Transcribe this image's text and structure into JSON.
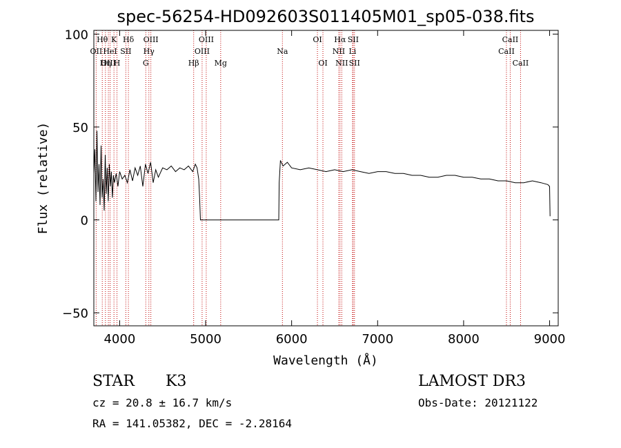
{
  "chart_data": {
    "type": "line",
    "title": "spec-56254-HD092603S011405M01_sp05-038.fits",
    "xlabel": "Wavelength (Å)",
    "ylabel": "Flux (relative)",
    "xlim": [
      3700,
      9100
    ],
    "ylim": [
      -57,
      102
    ],
    "x_ticks": [
      4000,
      5000,
      6000,
      7000,
      8000,
      9000
    ],
    "y_ticks": [
      100,
      50,
      0,
      -50
    ],
    "line_color": "#000000",
    "marker_color": "#c00000",
    "spectrum": {
      "name": "flux",
      "x": [
        3700,
        3712,
        3724,
        3736,
        3748,
        3760,
        3772,
        3784,
        3796,
        3808,
        3820,
        3832,
        3844,
        3856,
        3868,
        3880,
        3892,
        3904,
        3916,
        3928,
        3940,
        3960,
        3980,
        4000,
        4030,
        4060,
        4090,
        4120,
        4150,
        4180,
        4210,
        4240,
        4270,
        4300,
        4330,
        4360,
        4390,
        4420,
        4450,
        4500,
        4550,
        4600,
        4650,
        4700,
        4750,
        4800,
        4850,
        4880,
        4900,
        4920,
        4930,
        4940,
        5000,
        5200,
        5400,
        5600,
        5800,
        5850,
        5855,
        5870,
        5900,
        5950,
        6000,
        6100,
        6200,
        6300,
        6400,
        6500,
        6600,
        6700,
        6800,
        6900,
        7000,
        7100,
        7200,
        7300,
        7400,
        7500,
        7600,
        7700,
        7800,
        7900,
        8000,
        8100,
        8200,
        8300,
        8400,
        8500,
        8600,
        8700,
        8800,
        8900,
        8980,
        9000,
        9005
      ],
      "values": [
        25,
        38,
        10,
        48,
        15,
        30,
        8,
        40,
        12,
        22,
        5,
        35,
        14,
        28,
        10,
        30,
        18,
        26,
        12,
        24,
        20,
        25,
        18,
        26,
        22,
        24,
        20,
        27,
        21,
        28,
        24,
        29,
        18,
        30,
        25,
        31,
        20,
        27,
        23,
        28,
        27,
        29,
        26,
        28,
        27,
        29,
        26,
        30,
        28,
        22,
        12,
        0,
        0,
        0,
        0,
        0,
        0,
        0,
        20,
        32,
        29,
        31,
        28,
        27,
        28,
        27,
        26,
        27,
        26,
        27,
        26,
        25,
        26,
        26,
        25,
        25,
        24,
        24,
        23,
        23,
        24,
        24,
        23,
        23,
        22,
        22,
        21,
        21,
        20,
        20,
        21,
        20,
        19,
        18,
        2
      ]
    },
    "spectral_lines": [
      {
        "label": "Hθ",
        "wavelength": 3798,
        "row": 0
      },
      {
        "label": "OII",
        "wavelength": 3727,
        "row": 1
      },
      {
        "label": "OIII",
        "wavelength": 3869,
        "row": 2
      },
      {
        "label": "K",
        "wavelength": 3934,
        "row": 0
      },
      {
        "label": "HeI",
        "wavelength": 3889,
        "row": 1
      },
      {
        "label": "Hη",
        "wavelength": 3835,
        "row": 2
      },
      {
        "label": "SII",
        "wavelength": 4072,
        "row": 1
      },
      {
        "label": "H",
        "wavelength": 3969,
        "row": 2
      },
      {
        "label": "Hδ",
        "wavelength": 4102,
        "row": 0
      },
      {
        "label": "OIII",
        "wavelength": 4363,
        "row": 0
      },
      {
        "label": "Hγ",
        "wavelength": 4340,
        "row": 1
      },
      {
        "label": "G",
        "wavelength": 4304,
        "row": 2
      },
      {
        "label": "OIII",
        "wavelength": 5007,
        "row": 0
      },
      {
        "label": "OIII",
        "wavelength": 4959,
        "row": 1
      },
      {
        "label": "Hβ",
        "wavelength": 4861,
        "row": 2
      },
      {
        "label": "Mg",
        "wavelength": 5175,
        "row": 2
      },
      {
        "label": "Na",
        "wavelength": 5893,
        "row": 1
      },
      {
        "label": "OI",
        "wavelength": 6300,
        "row": 0
      },
      {
        "label": "OI",
        "wavelength": 6364,
        "row": 2
      },
      {
        "label": "Hα",
        "wavelength": 6563,
        "row": 0
      },
      {
        "label": "SII",
        "wavelength": 6716,
        "row": 0
      },
      {
        "label": "NII",
        "wavelength": 6548,
        "row": 1
      },
      {
        "label": "Li",
        "wavelength": 6708,
        "row": 1
      },
      {
        "label": "NII",
        "wavelength": 6583,
        "row": 2
      },
      {
        "label": "SII",
        "wavelength": 6731,
        "row": 2
      },
      {
        "label": "CaII",
        "wavelength": 8542,
        "row": 0
      },
      {
        "label": "CaII",
        "wavelength": 8498,
        "row": 1
      },
      {
        "label": "CaII",
        "wavelength": 8662,
        "row": 2
      }
    ]
  },
  "footer": {
    "class_label": "STAR",
    "subclass": "K3",
    "survey": "LAMOST DR3",
    "cz_text": "cz = 20.8 ± 16.7 km/s",
    "obs_date_text": "Obs-Date: 20121122",
    "coords_text": "RA = 141.05382, DEC =  -2.28164"
  }
}
